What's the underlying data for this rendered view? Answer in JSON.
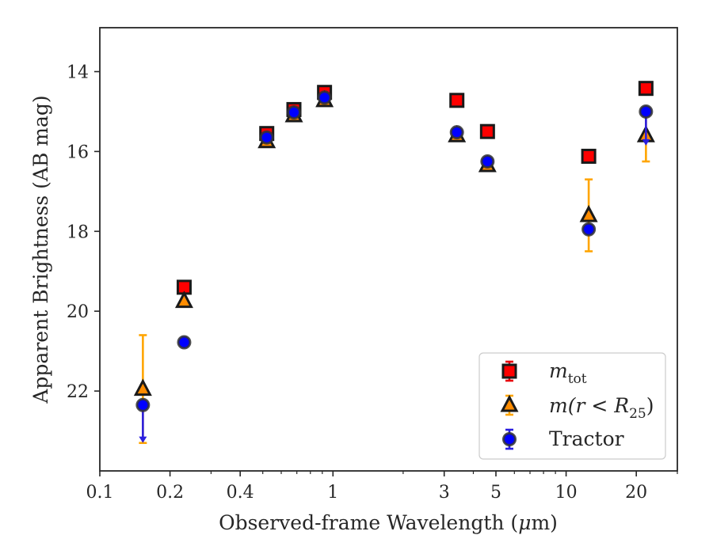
{
  "chart_data": {
    "type": "scatter",
    "xlabel_pre": "Observed-frame Wavelength (",
    "xlabel_mu": "μ",
    "xlabel_post": "m)",
    "ylabel": "Apparent Brightness (AB mag)",
    "xscale": "log",
    "xlim": [
      0.1,
      30
    ],
    "ylim": [
      24,
      12.9
    ],
    "y_inverted": true,
    "grid": false,
    "legend_position": "lower-right",
    "x_ticks": [
      {
        "value": 0.1,
        "label": "0.1"
      },
      {
        "value": 0.2,
        "label": "0.2"
      },
      {
        "value": 0.4,
        "label": "0.4"
      },
      {
        "value": 1,
        "label": "1"
      },
      {
        "value": 3,
        "label": "3"
      },
      {
        "value": 5,
        "label": "5"
      },
      {
        "value": 10,
        "label": "10"
      },
      {
        "value": 20,
        "label": "20"
      }
    ],
    "y_ticks": [
      {
        "value": 14,
        "label": "14"
      },
      {
        "value": 16,
        "label": "16"
      },
      {
        "value": 18,
        "label": "18"
      },
      {
        "value": 20,
        "label": "20"
      },
      {
        "value": 22,
        "label": "22"
      }
    ],
    "series": [
      {
        "name": "m_tot",
        "legend_label": {
          "main": "m",
          "sub": "tot"
        },
        "marker": "square",
        "face_color": "#ff0000",
        "error_color": "#e8000b",
        "points": [
          {
            "x": 0.23,
            "y": 19.4
          },
          {
            "x": 0.52,
            "y": 15.55
          },
          {
            "x": 0.68,
            "y": 14.95
          },
          {
            "x": 0.92,
            "y": 14.52
          },
          {
            "x": 3.4,
            "y": 14.72
          },
          {
            "x": 4.6,
            "y": 15.5
          },
          {
            "x": 12.5,
            "y": 16.12
          },
          {
            "x": 22,
            "y": 14.42
          }
        ]
      },
      {
        "name": "m(r<R25)",
        "legend_label": {
          "main": "m(r < R",
          "sub": "25",
          "tail": ")"
        },
        "marker": "triangle",
        "face_color": "#ff8c00",
        "error_color": "#ffa500",
        "points": [
          {
            "x": 0.153,
            "y": 21.95,
            "err_low": 1.35,
            "err_high": 1.35,
            "upper_limit_arrow": false
          },
          {
            "x": 0.23,
            "y": 19.75
          },
          {
            "x": 0.52,
            "y": 15.75
          },
          {
            "x": 0.68,
            "y": 15.1
          },
          {
            "x": 0.92,
            "y": 14.72
          },
          {
            "x": 3.4,
            "y": 15.6
          },
          {
            "x": 4.6,
            "y": 16.35
          },
          {
            "x": 12.5,
            "y": 17.6,
            "err_low": 0.9,
            "err_high": 0.9
          },
          {
            "x": 22,
            "y": 15.6,
            "err_low": 0.65,
            "err_high": 0.65
          }
        ]
      },
      {
        "name": "Tractor",
        "legend_label": {
          "main": "Tractor"
        },
        "marker": "circle",
        "face_color": "#0000ff",
        "error_color": "#2a1ee0",
        "points": [
          {
            "x": 0.153,
            "y": 22.35,
            "arrow_to": 23.3
          },
          {
            "x": 0.23,
            "y": 20.78
          },
          {
            "x": 0.52,
            "y": 15.65
          },
          {
            "x": 0.68,
            "y": 15.02
          },
          {
            "x": 0.92,
            "y": 14.65
          },
          {
            "x": 3.4,
            "y": 15.52
          },
          {
            "x": 4.6,
            "y": 16.25
          },
          {
            "x": 12.5,
            "y": 17.95
          },
          {
            "x": 22,
            "y": 15.0,
            "arrow_to": 15.85
          }
        ]
      }
    ]
  }
}
